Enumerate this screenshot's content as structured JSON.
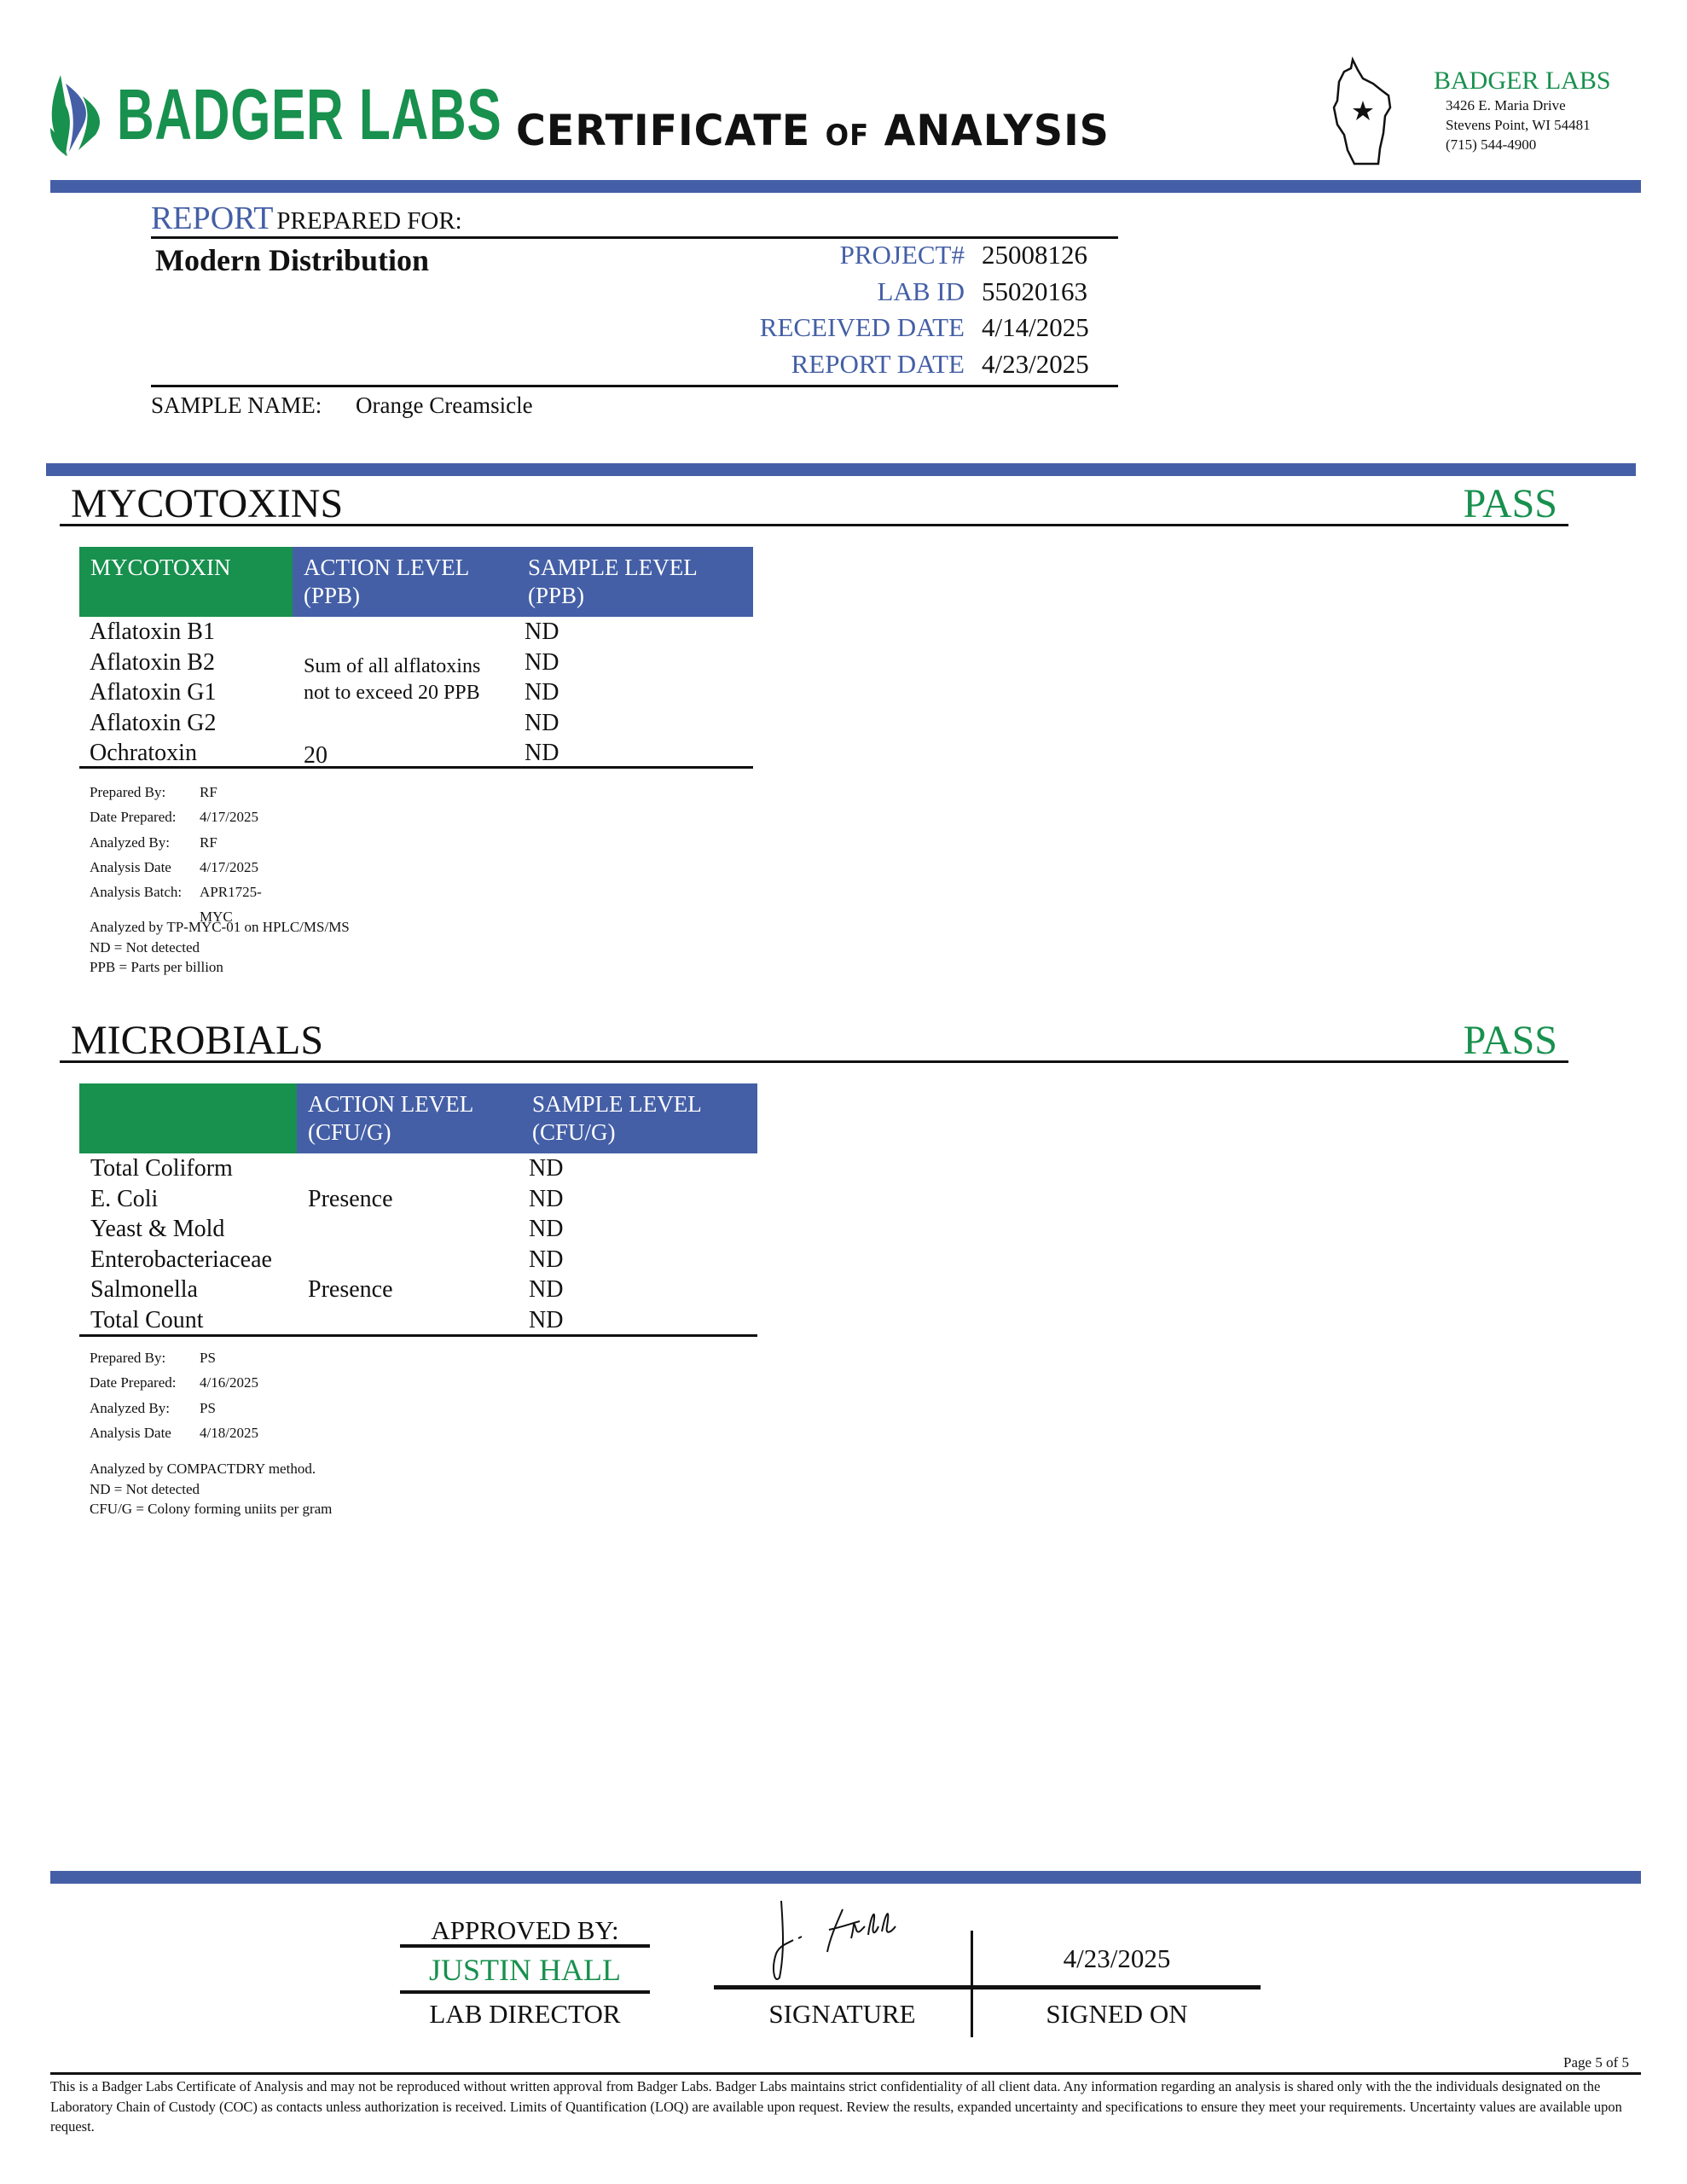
{
  "header": {
    "logo_text": "BADGER LABS",
    "title_main1": "CERTIFICATE",
    "title_of": "OF",
    "title_main2": "ANALYSIS",
    "lab_name": "BADGER LABS",
    "address1": "3426 E. Maria Drive",
    "address2": "Stevens Point, WI 54481",
    "phone": "(715) 544-4900"
  },
  "report": {
    "report_word": "REPORT",
    "prepared_for": "PREPARED FOR:",
    "client": "Modern Distribution",
    "fields": [
      {
        "label": "PROJECT#",
        "value": "25008126"
      },
      {
        "label": "LAB ID",
        "value": "55020163"
      },
      {
        "label": "RECEIVED DATE",
        "value": "4/14/2025"
      },
      {
        "label": "REPORT DATE",
        "value": "4/23/2025"
      }
    ],
    "sample_label": "SAMPLE NAME:",
    "sample_name": "Orange Creamsicle"
  },
  "mycotoxins": {
    "title": "MYCOTOXINS",
    "result": "PASS",
    "headers": [
      "MYCOTOXIN",
      "ACTION LEVEL",
      "(PPB)",
      "SAMPLE LEVEL",
      "(PPB)"
    ],
    "rows": [
      {
        "name": "Aflatoxin B1",
        "sample": "ND"
      },
      {
        "name": "Aflatoxin B2",
        "sample": "ND"
      },
      {
        "name": "Aflatoxin G1",
        "sample": "ND"
      },
      {
        "name": "Aflatoxin G2",
        "sample": "ND"
      },
      {
        "name": "Ochratoxin",
        "action": "20",
        "sample": "ND"
      }
    ],
    "aflatoxin_action_1": "Sum of all alflatoxins",
    "aflatoxin_action_2": "not to exceed 20 PPB",
    "meta": [
      {
        "label": "Prepared By:",
        "value": "RF"
      },
      {
        "label": "Date Prepared:",
        "value": "4/17/2025"
      },
      {
        "label": "Analyzed By:",
        "value": "RF"
      },
      {
        "label": "Analysis Date",
        "value": "4/17/2025"
      },
      {
        "label": "Analysis Batch:",
        "value": "APR1725-MYC"
      }
    ],
    "notes": [
      "Analyzed by TP-MYC-01 on HPLC/MS/MS",
      "ND = Not detected",
      "PPB = Parts per billion"
    ]
  },
  "microbials": {
    "title": "MICROBIALS",
    "result": "PASS",
    "headers": [
      "",
      "ACTION LEVEL",
      "(CFU/G)",
      "SAMPLE LEVEL",
      "(CFU/G)"
    ],
    "rows": [
      {
        "name": "Total Coliform",
        "action": "",
        "sample": "ND"
      },
      {
        "name": "E. Coli",
        "action": "Presence",
        "sample": "ND"
      },
      {
        "name": "Yeast & Mold",
        "action": "",
        "sample": "ND"
      },
      {
        "name": "Enterobacteriaceae",
        "action": "",
        "sample": "ND"
      },
      {
        "name": "Salmonella",
        "action": "Presence",
        "sample": "ND"
      },
      {
        "name": "Total Count",
        "action": "",
        "sample": "ND"
      }
    ],
    "meta": [
      {
        "label": "Prepared By:",
        "value": "PS"
      },
      {
        "label": "Date Prepared:",
        "value": "4/16/2025"
      },
      {
        "label": "Analyzed By:",
        "value": "PS"
      },
      {
        "label": "Analysis Date",
        "value": "4/18/2025"
      }
    ],
    "notes": [
      "Analyzed by COMPACTDRY method.",
      "ND = Not detected",
      "CFU/G = Colony forming uniits per gram"
    ]
  },
  "approval": {
    "approved_by": "APPROVED BY:",
    "name": "JUSTIN HALL",
    "role": "LAB DIRECTOR",
    "signature_label": "SIGNATURE",
    "signed_date": "4/23/2025",
    "signed_on_label": "SIGNED ON",
    "signature_text": "J. Hall"
  },
  "footer": {
    "page": "Page 5 of 5",
    "disclaimer": "This is a Badger Labs Certificate of Analysis and may not be reproduced without written approval from Badger Labs. Badger Labs maintains strict confidentiality of all client data. Any information regarding an analysis is shared only with the the individuals designated on the Laboratory Chain of Custody (COC) as contacts unless authorization is received. Limits of Quantification (LOQ) are available upon request. Review the results, expanded uncertainty and specifications to ensure they meet your requirements. Uncertainty values are available upon request."
  },
  "colors": {
    "green": "#18904e",
    "blue": "#445fa6"
  }
}
